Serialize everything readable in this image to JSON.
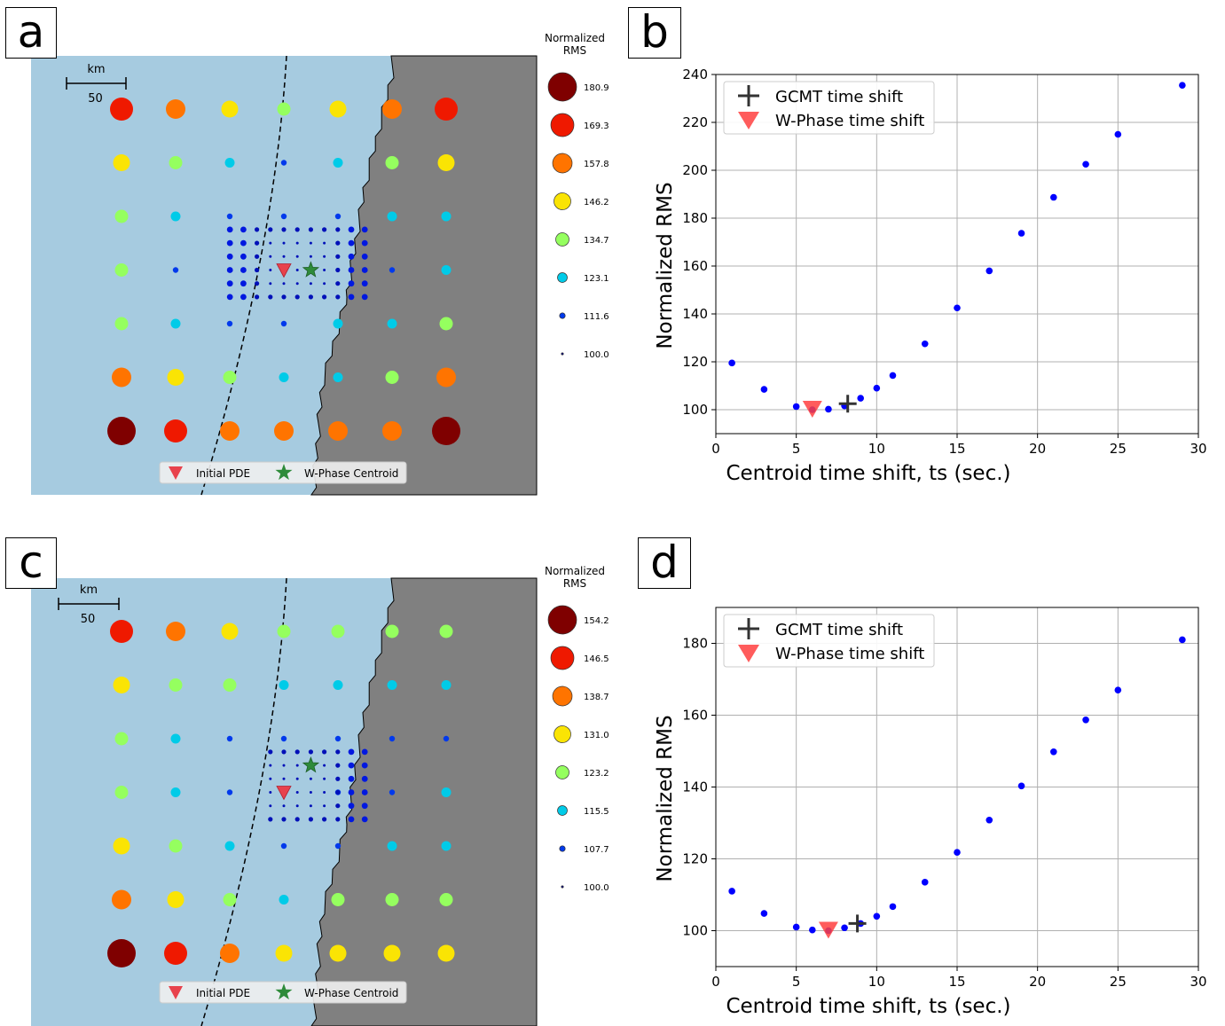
{
  "panels": [
    {
      "label": "a",
      "map": {
        "scalebar": {
          "unit": "km",
          "value": "50"
        },
        "legend_title": [
          "Normalized",
          "RMS"
        ],
        "size_legend": [
          "180.9",
          "169.3",
          "157.8",
          "146.2",
          "134.7",
          "123.1",
          "111.6",
          "100.0"
        ],
        "size_legend_colors": [
          "#7f0000",
          "#ff3000",
          "#ffb000",
          "#b4ff46",
          "#46ffb4",
          "#00a0ff",
          "#0010d0",
          "#00007f"
        ],
        "markers_legend": {
          "pde": "Initial PDE",
          "centroid": "W-Phase Centroid"
        },
        "grid_level": [
          [
            1,
            2,
            3,
            4,
            3,
            2,
            1
          ],
          [
            3,
            4,
            5,
            6,
            5,
            4,
            3
          ],
          [
            4,
            5,
            6,
            6,
            6,
            5,
            5
          ],
          [
            4,
            6,
            7,
            7,
            7,
            6,
            5
          ],
          [
            4,
            5,
            6,
            6,
            5,
            5,
            4
          ],
          [
            2,
            3,
            4,
            5,
            5,
            4,
            2
          ],
          [
            0,
            1,
            2,
            2,
            2,
            2,
            0
          ]
        ],
        "fine_grid": {
          "cols": [
            -4,
            -3,
            -2,
            -1,
            0,
            1,
            2,
            3,
            4,
            5,
            6
          ],
          "rows": [
            -3,
            -2,
            -1,
            0,
            1,
            2
          ]
        },
        "pde": {
          "col": 0,
          "row": 0
        },
        "centroid": {
          "col": 1,
          "row": 0
        }
      },
      "chart_data": {
        "type": "scatter",
        "xlabel": "Centroid time shift, ts (sec.)",
        "ylabel": "Normalized RMS",
        "xlim": [
          0,
          30
        ],
        "ylim": [
          90,
          240
        ],
        "xticks": [
          0,
          5,
          10,
          15,
          20,
          25,
          30
        ],
        "yticks": [
          100,
          120,
          140,
          160,
          180,
          200,
          220,
          240
        ],
        "grid": true,
        "legend_position": "top-left",
        "x": [
          1,
          3,
          5,
          6,
          7,
          8,
          9,
          10,
          11,
          13,
          15,
          17,
          19,
          21,
          23,
          25,
          29
        ],
        "y": [
          119.5,
          108.5,
          101.3,
          100.0,
          100.2,
          101.6,
          104.8,
          109.0,
          114.3,
          127.5,
          142.5,
          158.0,
          173.7,
          188.7,
          202.5,
          215.0,
          235.5
        ],
        "gcmt": {
          "x": 8.2,
          "y": 102.5,
          "label": "GCMT time shift"
        },
        "wphase": {
          "x": 6.0,
          "y": 100.0,
          "label": "W-Phase time shift"
        }
      }
    },
    {
      "label": "c",
      "map": {
        "scalebar": {
          "unit": "km",
          "value": "50"
        },
        "legend_title": [
          "Normalized",
          "RMS"
        ],
        "size_legend": [
          "154.2",
          "146.5",
          "138.7",
          "131.0",
          "123.2",
          "115.5",
          "107.7",
          "100.0"
        ],
        "size_legend_colors": [
          "#7f0000",
          "#ff3000",
          "#ffb000",
          "#b4ff46",
          "#46ffb4",
          "#00a0ff",
          "#0010d0",
          "#00007f"
        ],
        "markers_legend": {
          "pde": "Initial PDE",
          "centroid": "W-Phase Centroid"
        },
        "grid_level": [
          [
            1,
            2,
            3,
            4,
            4,
            4,
            4
          ],
          [
            3,
            4,
            4,
            5,
            5,
            5,
            5
          ],
          [
            4,
            5,
            6,
            6,
            6,
            6,
            6
          ],
          [
            4,
            5,
            6,
            7,
            6,
            6,
            5
          ],
          [
            3,
            4,
            5,
            6,
            6,
            5,
            5
          ],
          [
            2,
            3,
            4,
            5,
            4,
            4,
            4
          ],
          [
            0,
            1,
            2,
            3,
            3,
            3,
            3
          ]
        ],
        "fine_grid": {
          "cols": [
            -1,
            0,
            1,
            2,
            3,
            4,
            5,
            6
          ],
          "rows": [
            -3,
            -2,
            -1,
            0,
            1,
            2
          ]
        },
        "pde": {
          "col": 0,
          "row": 0
        },
        "centroid": {
          "col": 1,
          "row": -1
        }
      },
      "chart_data": {
        "type": "scatter",
        "xlabel": "Centroid time shift, ts (sec.)",
        "ylabel": "Normalized RMS",
        "xlim": [
          0,
          30
        ],
        "ylim": [
          90,
          190
        ],
        "xticks": [
          0,
          5,
          10,
          15,
          20,
          25,
          30
        ],
        "yticks": [
          100,
          120,
          140,
          160,
          180
        ],
        "grid": true,
        "legend_position": "top-left",
        "x": [
          1,
          3,
          5,
          6,
          7,
          8,
          9,
          10,
          11,
          13,
          15,
          17,
          19,
          21,
          23,
          25,
          29
        ],
        "y": [
          111.0,
          104.8,
          101.0,
          100.2,
          100.0,
          100.8,
          102.0,
          104.0,
          106.7,
          113.5,
          121.8,
          130.8,
          140.3,
          149.8,
          158.7,
          167.0,
          181.0
        ],
        "gcmt": {
          "x": 8.8,
          "y": 102.0,
          "label": "GCMT time shift"
        },
        "wphase": {
          "x": 7.0,
          "y": 100.0,
          "label": "W-Phase time shift"
        }
      }
    }
  ],
  "panel_labels": {
    "a": "a",
    "b": "b",
    "c": "c",
    "d": "d"
  }
}
